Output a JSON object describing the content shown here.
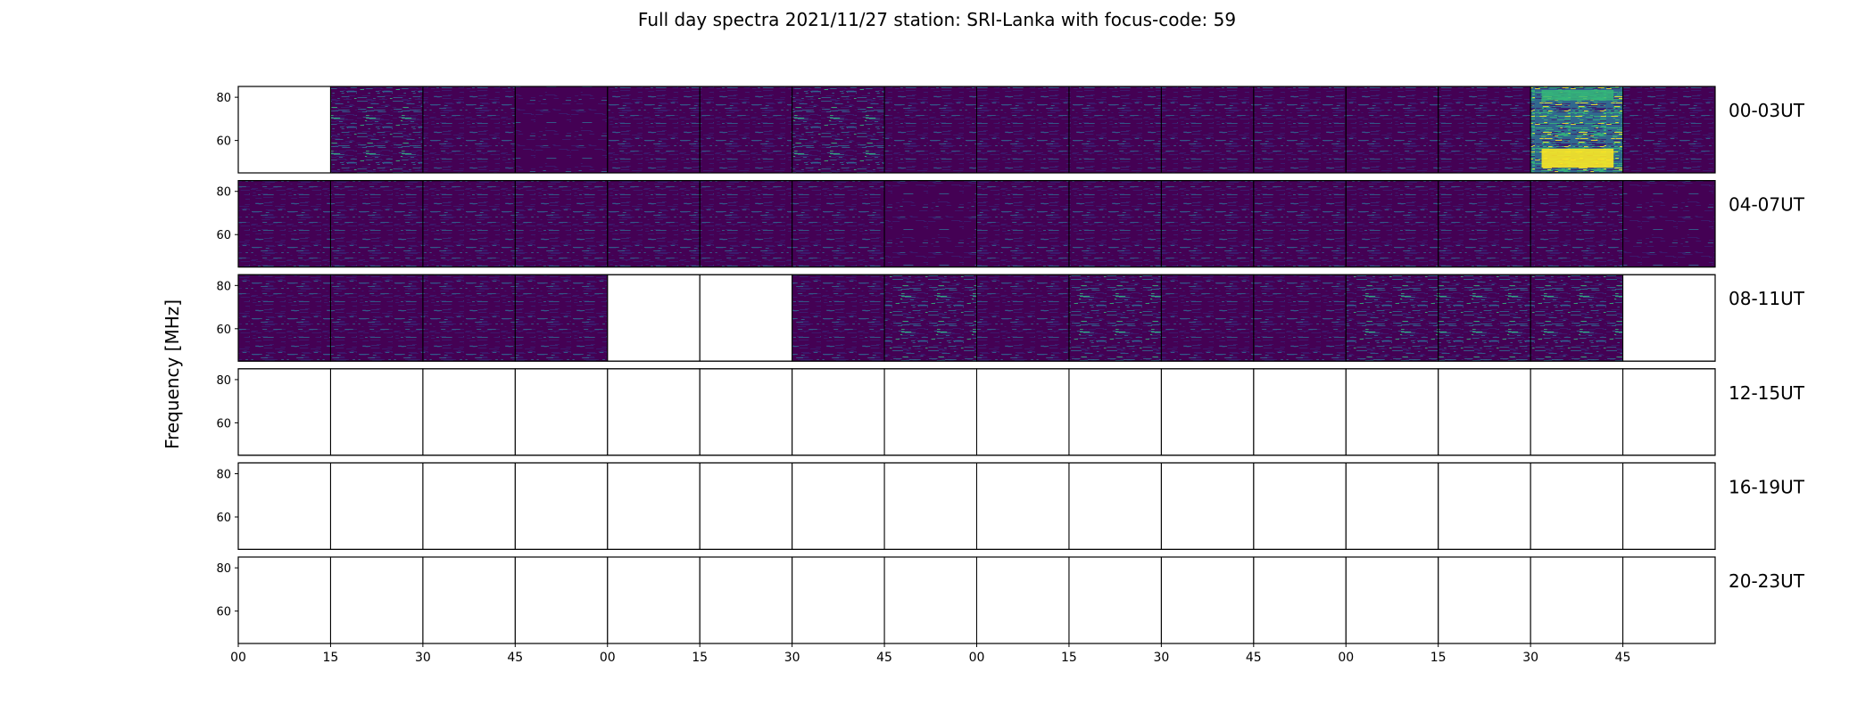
{
  "chart_data": {
    "type": "heatmap",
    "title": "Full day spectra 2021/11/27 station: SRI-Lanka with focus-code: 59",
    "ylabel": "Frequency [MHz]",
    "xlabel": "",
    "ylim": [
      45,
      85
    ],
    "yticks": [
      60,
      80
    ],
    "xticks": [
      "00",
      "15",
      "30",
      "45",
      "00",
      "15",
      "30",
      "45",
      "00",
      "15",
      "30",
      "45",
      "00",
      "15",
      "30",
      "45"
    ],
    "colormap": "viridis",
    "rows": [
      {
        "label": "00-03UT",
        "panels": [
          0,
          2,
          1,
          3,
          1,
          1,
          2,
          1,
          1,
          1,
          1,
          1,
          1,
          1,
          4,
          1
        ]
      },
      {
        "label": "04-07UT",
        "panels": [
          1,
          1,
          1,
          1,
          1,
          1,
          1,
          3,
          1,
          1,
          1,
          1,
          1,
          1,
          1,
          3
        ]
      },
      {
        "label": "08-11UT",
        "panels": [
          1,
          1,
          1,
          1,
          0,
          0,
          1,
          2,
          1,
          2,
          1,
          1,
          2,
          2,
          2,
          0
        ]
      },
      {
        "label": "12-15UT",
        "panels": [
          0,
          0,
          0,
          0,
          0,
          0,
          0,
          0,
          0,
          0,
          0,
          0,
          0,
          0,
          0,
          0
        ]
      },
      {
        "label": "16-19UT",
        "panels": [
          0,
          0,
          0,
          0,
          0,
          0,
          0,
          0,
          0,
          0,
          0,
          0,
          0,
          0,
          0,
          0
        ]
      },
      {
        "label": "20-23UT",
        "panels": [
          0,
          0,
          0,
          0,
          0,
          0,
          0,
          0,
          0,
          0,
          0,
          0,
          0,
          0,
          0,
          0
        ]
      }
    ],
    "grid": false
  },
  "colors": {
    "background": "#440154",
    "low": "#3b1c6e",
    "mid": "#31688e",
    "high": "#35b779",
    "peak": "#fde725",
    "axis": "#000000"
  }
}
